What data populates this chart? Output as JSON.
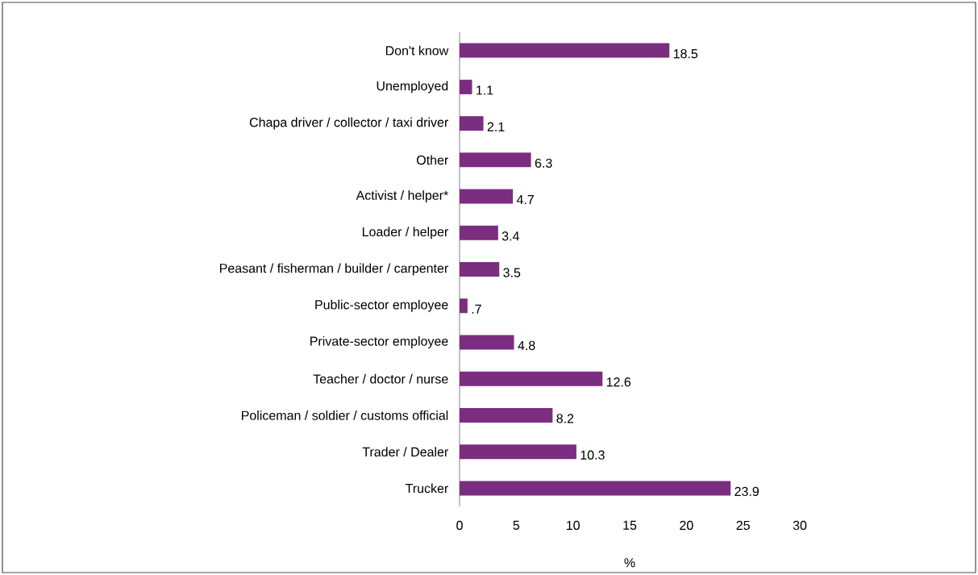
{
  "chart_data": {
    "type": "bar",
    "orientation": "horizontal",
    "categories": [
      "Don't know",
      "Unemployed",
      "Chapa driver / collector / taxi driver",
      "Other",
      "Activist / helper*",
      "Loader / helper",
      "Peasant / fisherman / builder / carpenter",
      "Public-sector employee",
      "Private-sector employee",
      "Teacher / doctor / nurse",
      "Policeman / soldier / customs official",
      "Trader / Dealer",
      "Trucker"
    ],
    "values": [
      18.5,
      1.1,
      2.1,
      6.3,
      4.7,
      3.4,
      3.5,
      0.7,
      4.8,
      12.6,
      8.2,
      10.3,
      23.9
    ],
    "value_labels": [
      "18.5",
      "1.1",
      "2.1",
      "6.3",
      "4.7",
      "3.4",
      "3.5",
      ".7",
      "4.8",
      "12.6",
      "8.2",
      "10.3",
      "23.9"
    ],
    "color": "#7b2d80",
    "xlim": [
      0,
      30
    ],
    "xticks": [
      0,
      5,
      10,
      15,
      20,
      25,
      30
    ],
    "xlabel": "%"
  }
}
